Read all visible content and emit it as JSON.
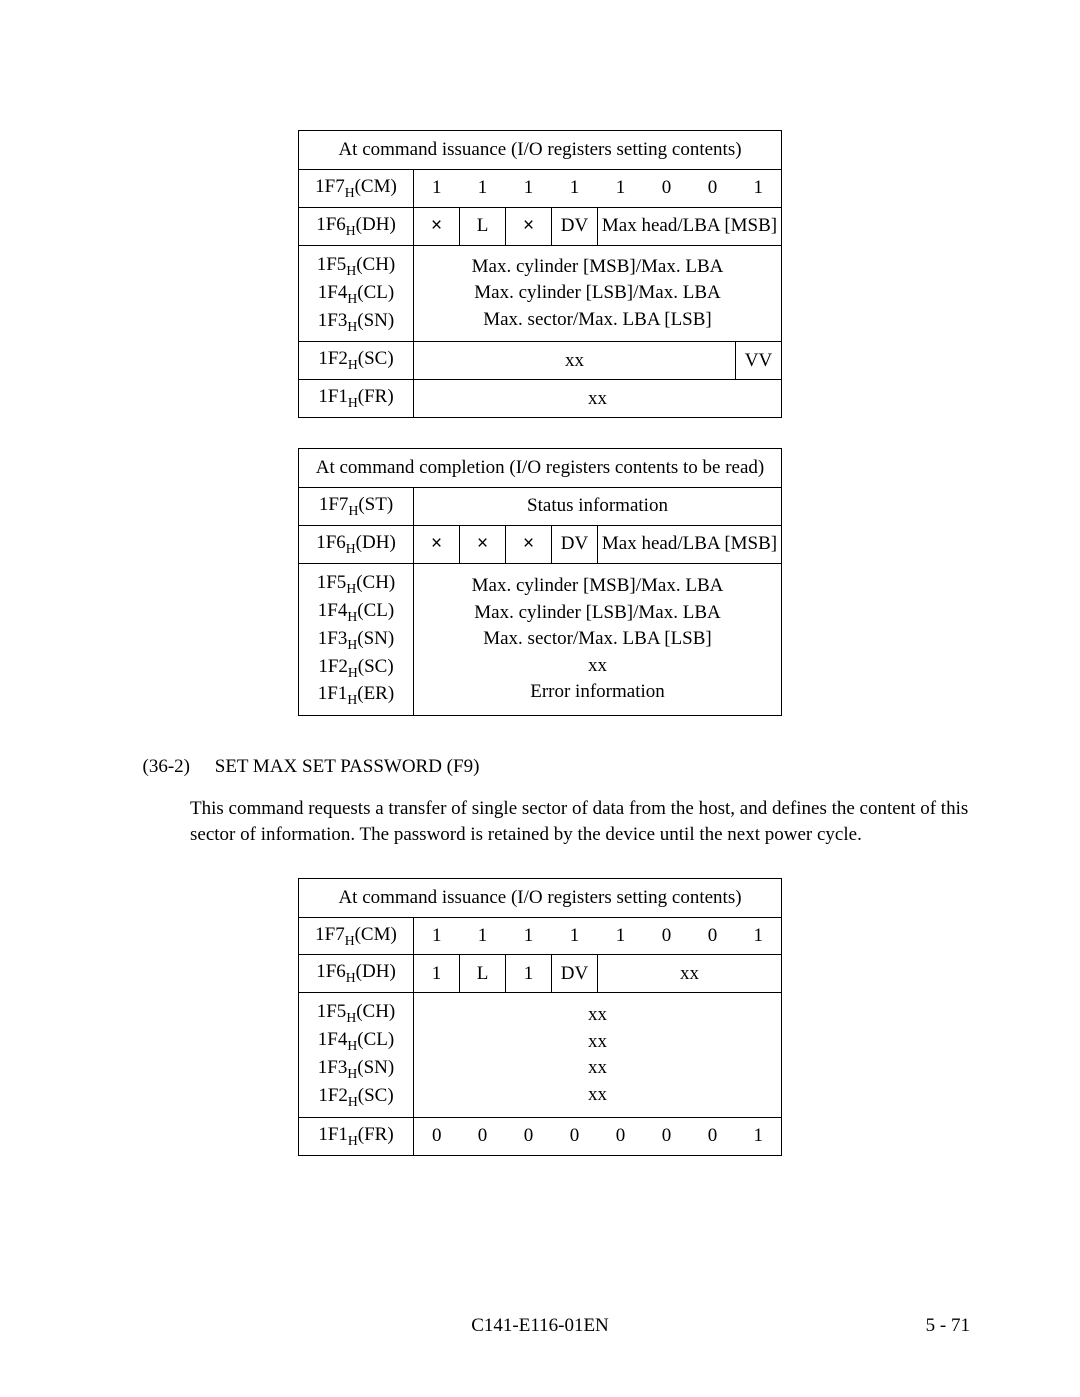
{
  "table1": {
    "title": "At command issuance (I/O registers setting contents)",
    "r_cm_label": "1F7_H(CM)",
    "r_cm_bits": [
      "1",
      "1",
      "1",
      "1",
      "1",
      "0",
      "0",
      "1"
    ],
    "r_dh_label": "1F6_H(DH)",
    "r_dh_c0": "×",
    "r_dh_c1": "L",
    "r_dh_c2": "×",
    "r_dh_c3": "DV",
    "r_dh_rest": "Max head/LBA [MSB]",
    "r_ch_label": "1F5_H(CH)",
    "r_cl_label": "1F4_H(CL)",
    "r_sn_label": "1F3_H(SN)",
    "r_ch_text": "Max. cylinder [MSB]/Max. LBA",
    "r_cl_text": "Max. cylinder [LSB]/Max. LBA",
    "r_sn_text": "Max. sector/Max. LBA [LSB]",
    "r_sc_label": "1F2_H(SC)",
    "r_sc_text": "xx",
    "r_sc_vv": "VV",
    "r_fr_label": "1F1_H(FR)",
    "r_fr_text": "xx"
  },
  "table2": {
    "title": "At command completion (I/O registers contents to be read)",
    "r_st_label": "1F7_H(ST)",
    "r_st_text": "Status information",
    "r_dh_label": "1F6_H(DH)",
    "r_dh_c0": "×",
    "r_dh_c1": "×",
    "r_dh_c2": "×",
    "r_dh_c3": "DV",
    "r_dh_rest": "Max head/LBA [MSB]",
    "r_ch_label": "1F5_H(CH)",
    "r_cl_label": "1F4_H(CL)",
    "r_sn_label": "1F3_H(SN)",
    "r_sc_label": "1F2_H(SC)",
    "r_er_label": "1F1_H(ER)",
    "r_ch_text": "Max. cylinder [MSB]/Max. LBA",
    "r_cl_text": "Max. cylinder [LSB]/Max. LBA",
    "r_sn_text": "Max. sector/Max. LBA [LSB]",
    "r_sc_text": "xx",
    "r_er_text": "Error information"
  },
  "section": {
    "num": "(36-2)",
    "title": "SET MAX SET PASSWORD (F9)",
    "body": "This command requests a transfer of single sector of data from the host, and defines the content of this sector of information.  The password is retained by the device until the next power cycle."
  },
  "table3": {
    "title": "At command issuance (I/O registers setting contents)",
    "r_cm_label": "1F7_H(CM)",
    "r_cm_bits": [
      "1",
      "1",
      "1",
      "1",
      "1",
      "0",
      "0",
      "1"
    ],
    "r_dh_label": "1F6_H(DH)",
    "r_dh_c0": "1",
    "r_dh_c1": "L",
    "r_dh_c2": "1",
    "r_dh_c3": "DV",
    "r_dh_rest": "xx",
    "r_ch_label": "1F5_H(CH)",
    "r_cl_label": "1F4_H(CL)",
    "r_sn_label": "1F3_H(SN)",
    "r_sc_label": "1F2_H(SC)",
    "r_ch_text": "xx",
    "r_cl_text": "xx",
    "r_sn_text": "xx",
    "r_sc_text": "xx",
    "r_fr_label": "1F1_H(FR)",
    "r_fr_bits": [
      "0",
      "0",
      "0",
      "0",
      "0",
      "0",
      "0",
      "1"
    ]
  },
  "footer": {
    "docnum": "C141-E116-01EN",
    "pagenum": "5 - 71"
  }
}
